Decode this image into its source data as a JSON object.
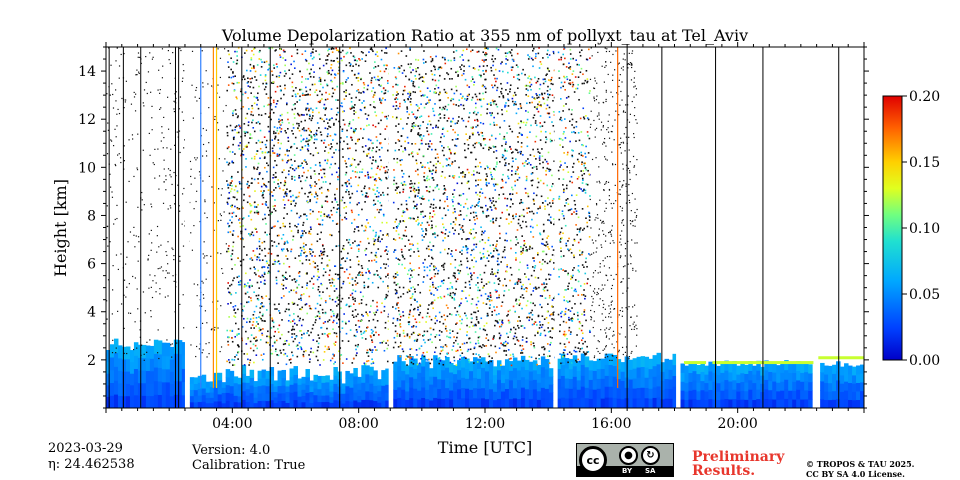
{
  "chart_data": {
    "type": "heatmap",
    "title": "Volume Depolarization Ratio at 355 nm of pollyxt_tau at Tel_Aviv",
    "xlabel": "Time [UTC]",
    "ylabel": "Height [km]",
    "x_unit": "hours UTC",
    "x_range": [
      0,
      24
    ],
    "x_ticks": [
      {
        "value": 4,
        "label": "04:00"
      },
      {
        "value": 8,
        "label": "08:00"
      },
      {
        "value": 12,
        "label": "12:00"
      },
      {
        "value": 16,
        "label": "16:00"
      },
      {
        "value": 20,
        "label": "20:00"
      }
    ],
    "ylim": [
      0,
      15
    ],
    "y_ticks": [
      2,
      4,
      6,
      8,
      10,
      12,
      14
    ],
    "colorbar": {
      "range": [
        0.0,
        0.2
      ],
      "ticks": [
        "0.00",
        "0.05",
        "0.10",
        "0.15",
        "0.20"
      ],
      "colormap": "jet"
    },
    "data_gaps": [
      [
        2.5,
        2.65
      ],
      [
        8.95,
        9.05
      ],
      [
        14.2,
        14.3
      ],
      [
        18.05,
        18.15
      ],
      [
        22.4,
        22.55
      ]
    ],
    "cloud_top_layer": [
      {
        "from": 18.3,
        "to": 19.0,
        "height": 1.8
      },
      {
        "from": 19.2,
        "to": 22.4,
        "height": 1.8
      },
      {
        "from": 22.55,
        "to": 24,
        "height": 2.0
      }
    ]
  },
  "footer": {
    "date": "2023-03-29",
    "eta_label": "η: 24.462538",
    "version": "Version: 4.0",
    "calibration": "Calibration: True",
    "preliminary_line1": "Preliminary",
    "preliminary_line2": "Results.",
    "copyright_line1": "© TROPOS & TAU 2025.",
    "copyright_line2": "CC BY SA 4.0 License.",
    "cc_text": "cc",
    "by_text": "BY",
    "sa_text": "SA"
  },
  "colors": {
    "accent_preliminary": "#e8362c"
  }
}
